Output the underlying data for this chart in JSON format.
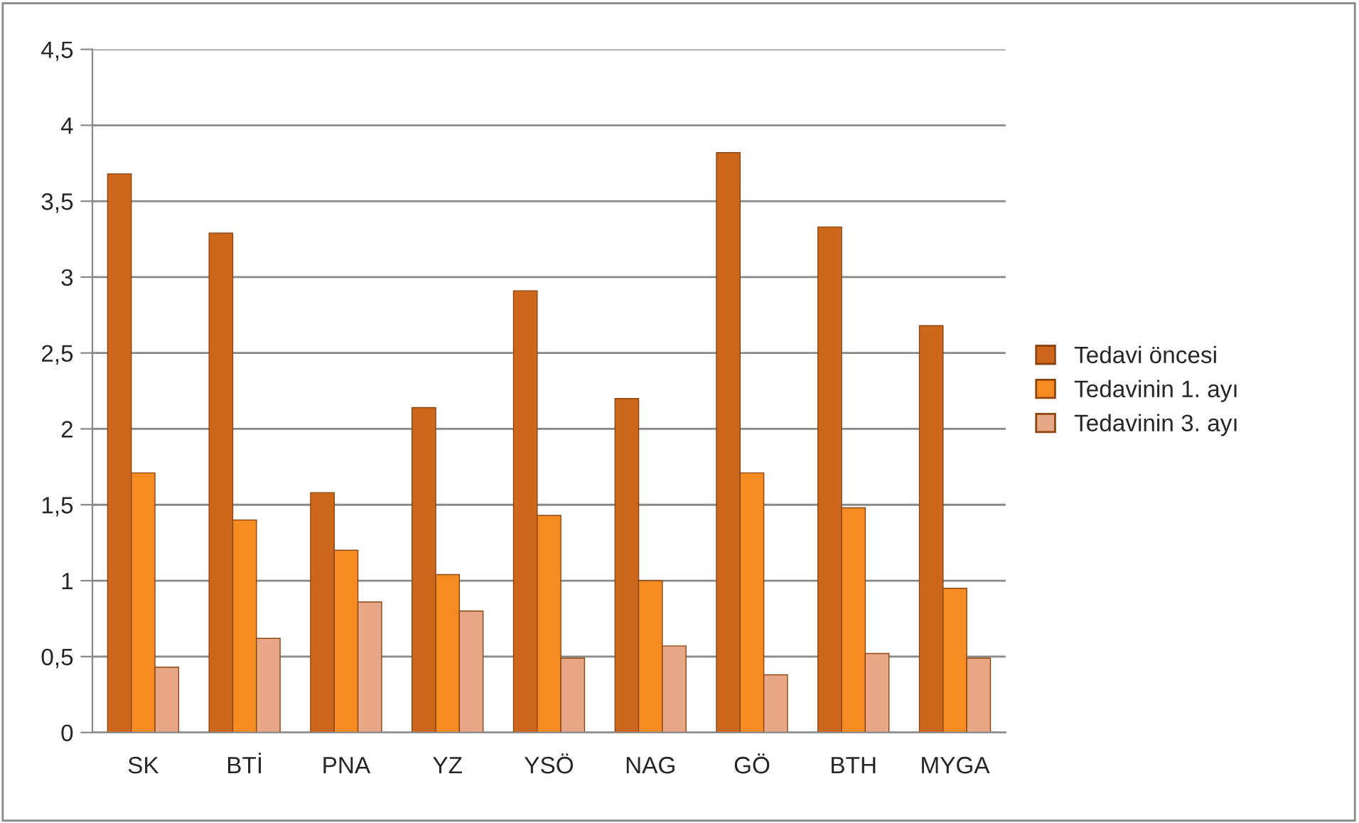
{
  "chart_data": {
    "type": "bar",
    "categories": [
      "SK",
      "BTİ",
      "PNA",
      "YZ",
      "YSÖ",
      "NAG",
      "GÖ",
      "BTH",
      "MYGA"
    ],
    "series": [
      {
        "name": "Tedavi öncesi",
        "color": "#cc671c",
        "values": [
          3.68,
          3.29,
          1.58,
          2.14,
          2.91,
          2.2,
          3.82,
          3.33,
          2.68
        ]
      },
      {
        "name": "Tedavinin 1. ayı",
        "color": "#f68b22",
        "values": [
          1.71,
          1.4,
          1.2,
          1.04,
          1.43,
          1.0,
          1.71,
          1.48,
          0.95
        ]
      },
      {
        "name": "Tedavinin 3. ayı",
        "color": "#e8a888",
        "values": [
          0.43,
          0.62,
          0.86,
          0.8,
          0.49,
          0.57,
          0.38,
          0.52,
          0.49
        ]
      }
    ],
    "ylim": [
      0,
      4.5
    ],
    "yticks": [
      0,
      {
        "value": 0.5,
        "label": "0,5"
      },
      1,
      {
        "value": 1.5,
        "label": "1,5"
      },
      2,
      {
        "value": 2.5,
        "label": "2,5"
      },
      3,
      {
        "value": 3.5,
        "label": "3,5"
      },
      4,
      {
        "value": 4.5,
        "label": "4,5"
      }
    ],
    "grid": "y",
    "legend": "right"
  }
}
